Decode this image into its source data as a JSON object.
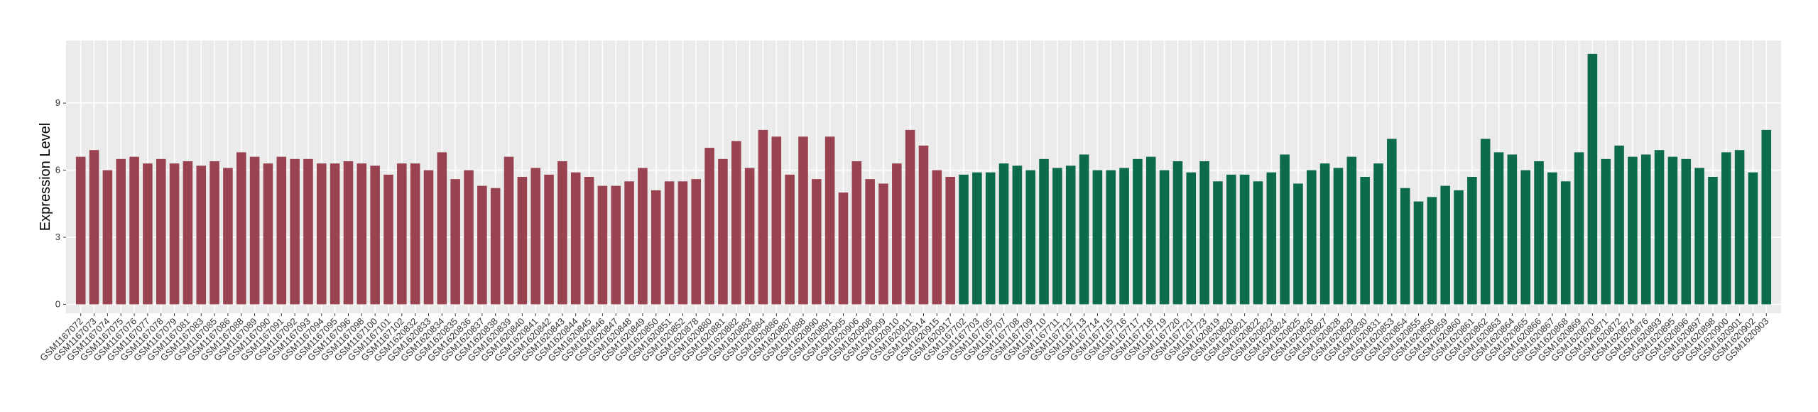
{
  "chart_data": {
    "type": "bar",
    "y_label": "Expression Level",
    "ylim": [
      -0.4,
      11.8
    ],
    "yticks": [
      0,
      3,
      6,
      9
    ],
    "grid": true,
    "series": [
      {
        "color": "#9a4350",
        "categories": [
          "GSM1167072",
          "GSM1167073",
          "GSM1167074",
          "GSM1167075",
          "GSM1167076",
          "GSM1167077",
          "GSM1167078",
          "GSM1167079",
          "GSM1167081",
          "GSM1167083",
          "GSM1167085",
          "GSM1167086",
          "GSM1167088",
          "GSM1167089",
          "GSM1167090",
          "GSM1167091",
          "GSM1167092",
          "GSM1167093",
          "GSM1167094",
          "GSM1167095",
          "GSM1167096",
          "GSM1167098",
          "GSM1167100",
          "GSM1167101",
          "GSM1167102",
          "GSM1620832",
          "GSM1620833",
          "GSM1620834",
          "GSM1620835",
          "GSM1620836",
          "GSM1620837",
          "GSM1620838",
          "GSM1620839",
          "GSM1620840",
          "GSM1620841",
          "GSM1620842",
          "GSM1620843",
          "GSM1620844",
          "GSM1620845",
          "GSM1620846",
          "GSM1620847",
          "GSM1620848",
          "GSM1620849",
          "GSM1620850",
          "GSM1620851",
          "GSM1620852",
          "GSM1620878",
          "GSM1620880",
          "GSM1620881",
          "GSM1620882",
          "GSM1620883",
          "GSM1620884",
          "GSM1620886",
          "GSM1620887",
          "GSM1620888",
          "GSM1620890",
          "GSM1620891",
          "GSM1620905",
          "GSM1620906",
          "GSM1620908",
          "GSM1620909",
          "GSM1620910",
          "GSM1620911",
          "GSM1620914",
          "GSM1620915",
          "GSM1620917"
        ],
        "values": [
          6.6,
          6.9,
          6.0,
          6.5,
          6.6,
          6.3,
          6.5,
          6.3,
          6.4,
          6.2,
          6.4,
          6.1,
          6.8,
          6.6,
          6.3,
          6.6,
          6.5,
          6.5,
          6.3,
          6.3,
          6.4,
          6.3,
          6.2,
          5.8,
          6.3,
          6.3,
          6.0,
          6.8,
          5.6,
          6.0,
          5.3,
          5.2,
          6.6,
          5.7,
          6.1,
          5.8,
          6.4,
          5.9,
          5.7,
          5.3,
          5.3,
          5.5,
          6.1,
          5.1,
          5.5,
          5.5,
          5.6,
          7.0,
          6.5,
          7.3,
          6.1,
          7.8,
          7.5,
          5.8,
          7.5,
          5.6,
          7.5,
          5.0,
          6.4,
          5.6,
          5.4,
          6.3,
          7.8,
          7.1,
          6.0,
          5.7
        ]
      },
      {
        "color": "#0b6b4a",
        "categories": [
          "GSM1167702",
          "GSM1167703",
          "GSM1167705",
          "GSM1167707",
          "GSM1167708",
          "GSM1167709",
          "GSM1167710",
          "GSM1167711",
          "GSM1167712",
          "GSM1167713",
          "GSM1167714",
          "GSM1167715",
          "GSM1167716",
          "GSM1167717",
          "GSM1167718",
          "GSM1167719",
          "GSM1167720",
          "GSM1167721",
          "GSM1167723",
          "GSM1620819",
          "GSM1620820",
          "GSM1620821",
          "GSM1620822",
          "GSM1620823",
          "GSM1620824",
          "GSM1620825",
          "GSM1620826",
          "GSM1620827",
          "GSM1620828",
          "GSM1620829",
          "GSM1620830",
          "GSM1620831",
          "GSM1620853",
          "GSM1620854",
          "GSM1620855",
          "GSM1620856",
          "GSM1620859",
          "GSM1620860",
          "GSM1620861",
          "GSM1620862",
          "GSM1620863",
          "GSM1620864",
          "GSM1620865",
          "GSM1620866",
          "GSM1620867",
          "GSM1620868",
          "GSM1620869",
          "GSM1620870",
          "GSM1620871",
          "GSM1620872",
          "GSM1620874",
          "GSM1620876",
          "GSM1620893",
          "GSM1620895",
          "GSM1620896",
          "GSM1620897",
          "GSM1620898",
          "GSM1620900",
          "GSM1620901",
          "GSM1620902",
          "GSM1620903"
        ],
        "values": [
          5.8,
          5.9,
          5.9,
          6.3,
          6.2,
          6.0,
          6.5,
          6.1,
          6.2,
          6.7,
          6.0,
          6.0,
          6.1,
          6.5,
          6.6,
          6.0,
          6.4,
          5.9,
          6.4,
          5.5,
          5.8,
          5.8,
          5.5,
          5.9,
          6.7,
          5.4,
          6.0,
          6.3,
          6.1,
          6.6,
          5.7,
          6.3,
          7.4,
          5.2,
          4.6,
          4.8,
          5.3,
          5.1,
          5.7,
          7.4,
          6.8,
          6.7,
          6.0,
          6.4,
          5.9,
          5.5,
          6.8,
          11.2,
          6.5,
          7.1,
          6.6,
          6.7,
          6.9,
          6.6,
          6.5,
          6.1,
          5.7,
          6.8,
          6.9,
          5.9,
          7.8
        ]
      }
    ]
  }
}
